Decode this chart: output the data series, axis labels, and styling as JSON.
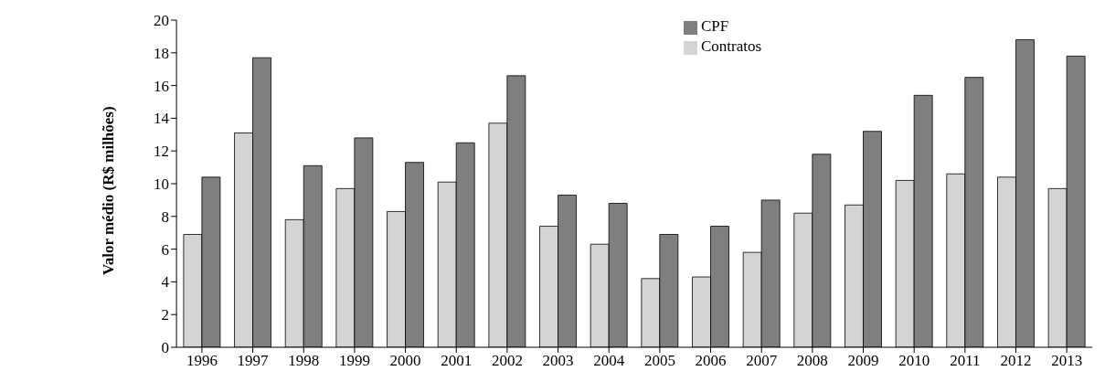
{
  "chart_data": {
    "type": "bar",
    "ylabel": "Valor médio (R$ milhões)",
    "categories": [
      "1996",
      "1997",
      "1998",
      "1999",
      "2000",
      "2001",
      "2002",
      "2003",
      "2004",
      "2005",
      "2006",
      "2007",
      "2008",
      "2009",
      "2010",
      "2011",
      "2012",
      "2013"
    ],
    "series": [
      {
        "name": "Contratos",
        "color": "#d4d4d4",
        "values": [
          6.9,
          13.1,
          7.8,
          9.7,
          8.3,
          10.1,
          13.7,
          7.4,
          6.3,
          4.2,
          4.3,
          5.8,
          8.2,
          8.7,
          10.2,
          10.6,
          10.4,
          9.7
        ]
      },
      {
        "name": "CPF",
        "color": "#7f7f81",
        "values": [
          10.4,
          17.7,
          11.1,
          12.8,
          11.3,
          12.5,
          16.6,
          9.3,
          8.8,
          6.9,
          7.4,
          9.0,
          11.8,
          13.2,
          15.4,
          16.5,
          18.8,
          17.8
        ]
      }
    ],
    "ylim": [
      0,
      20
    ],
    "yticks": [
      0,
      2,
      4,
      6,
      8,
      10,
      12,
      14,
      16,
      18,
      20
    ],
    "grid": false,
    "legend": "top right"
  }
}
